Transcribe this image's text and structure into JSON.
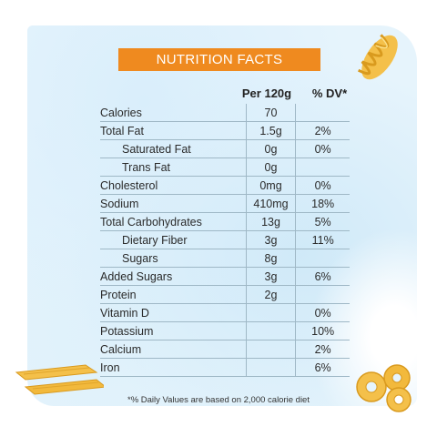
{
  "title": "NUTRITION FACTS",
  "columns": {
    "amount": "Per 120g",
    "dv": "% DV*"
  },
  "rows": [
    {
      "name": "Calories",
      "amount": "70",
      "dv": ""
    },
    {
      "name": "Total Fat",
      "amount": "1.5g",
      "dv": "2%"
    },
    {
      "name": "Saturated Fat",
      "amount": "0g",
      "dv": "0%"
    },
    {
      "name": "Trans Fat",
      "amount": "0g",
      "dv": ""
    },
    {
      "name": "Cholesterol",
      "amount": "0mg",
      "dv": "0%"
    },
    {
      "name": "Sodium",
      "amount": "410mg",
      "dv": "18%"
    },
    {
      "name": "Total Carbohydrates",
      "amount": "13g",
      "dv": "5%"
    },
    {
      "name": "Dietary Fiber",
      "amount": "3g",
      "dv": "11%"
    },
    {
      "name": "Sugars",
      "amount": "8g",
      "dv": ""
    },
    {
      "name": "Added Sugars",
      "amount": "3g",
      "dv": "6%"
    },
    {
      "name": "Protein",
      "amount": "2g",
      "dv": ""
    },
    {
      "name": "Vitamin D",
      "amount": "",
      "dv": "0%"
    },
    {
      "name": "Potassium",
      "amount": "",
      "dv": "10%"
    },
    {
      "name": "Calcium",
      "amount": "",
      "dv": "2%"
    },
    {
      "name": "Iron",
      "amount": "",
      "dv": "6%"
    }
  ],
  "footnote": "*% Daily Values are based on 2,000 calorie diet",
  "colors": {
    "accent": "#ef8a1f",
    "background": "#e6f4fc",
    "pasta": "#f4c04a"
  },
  "icons": [
    "fusilli-pasta-icon",
    "penne-pasta-icon",
    "cavatappi-pasta-icon"
  ]
}
